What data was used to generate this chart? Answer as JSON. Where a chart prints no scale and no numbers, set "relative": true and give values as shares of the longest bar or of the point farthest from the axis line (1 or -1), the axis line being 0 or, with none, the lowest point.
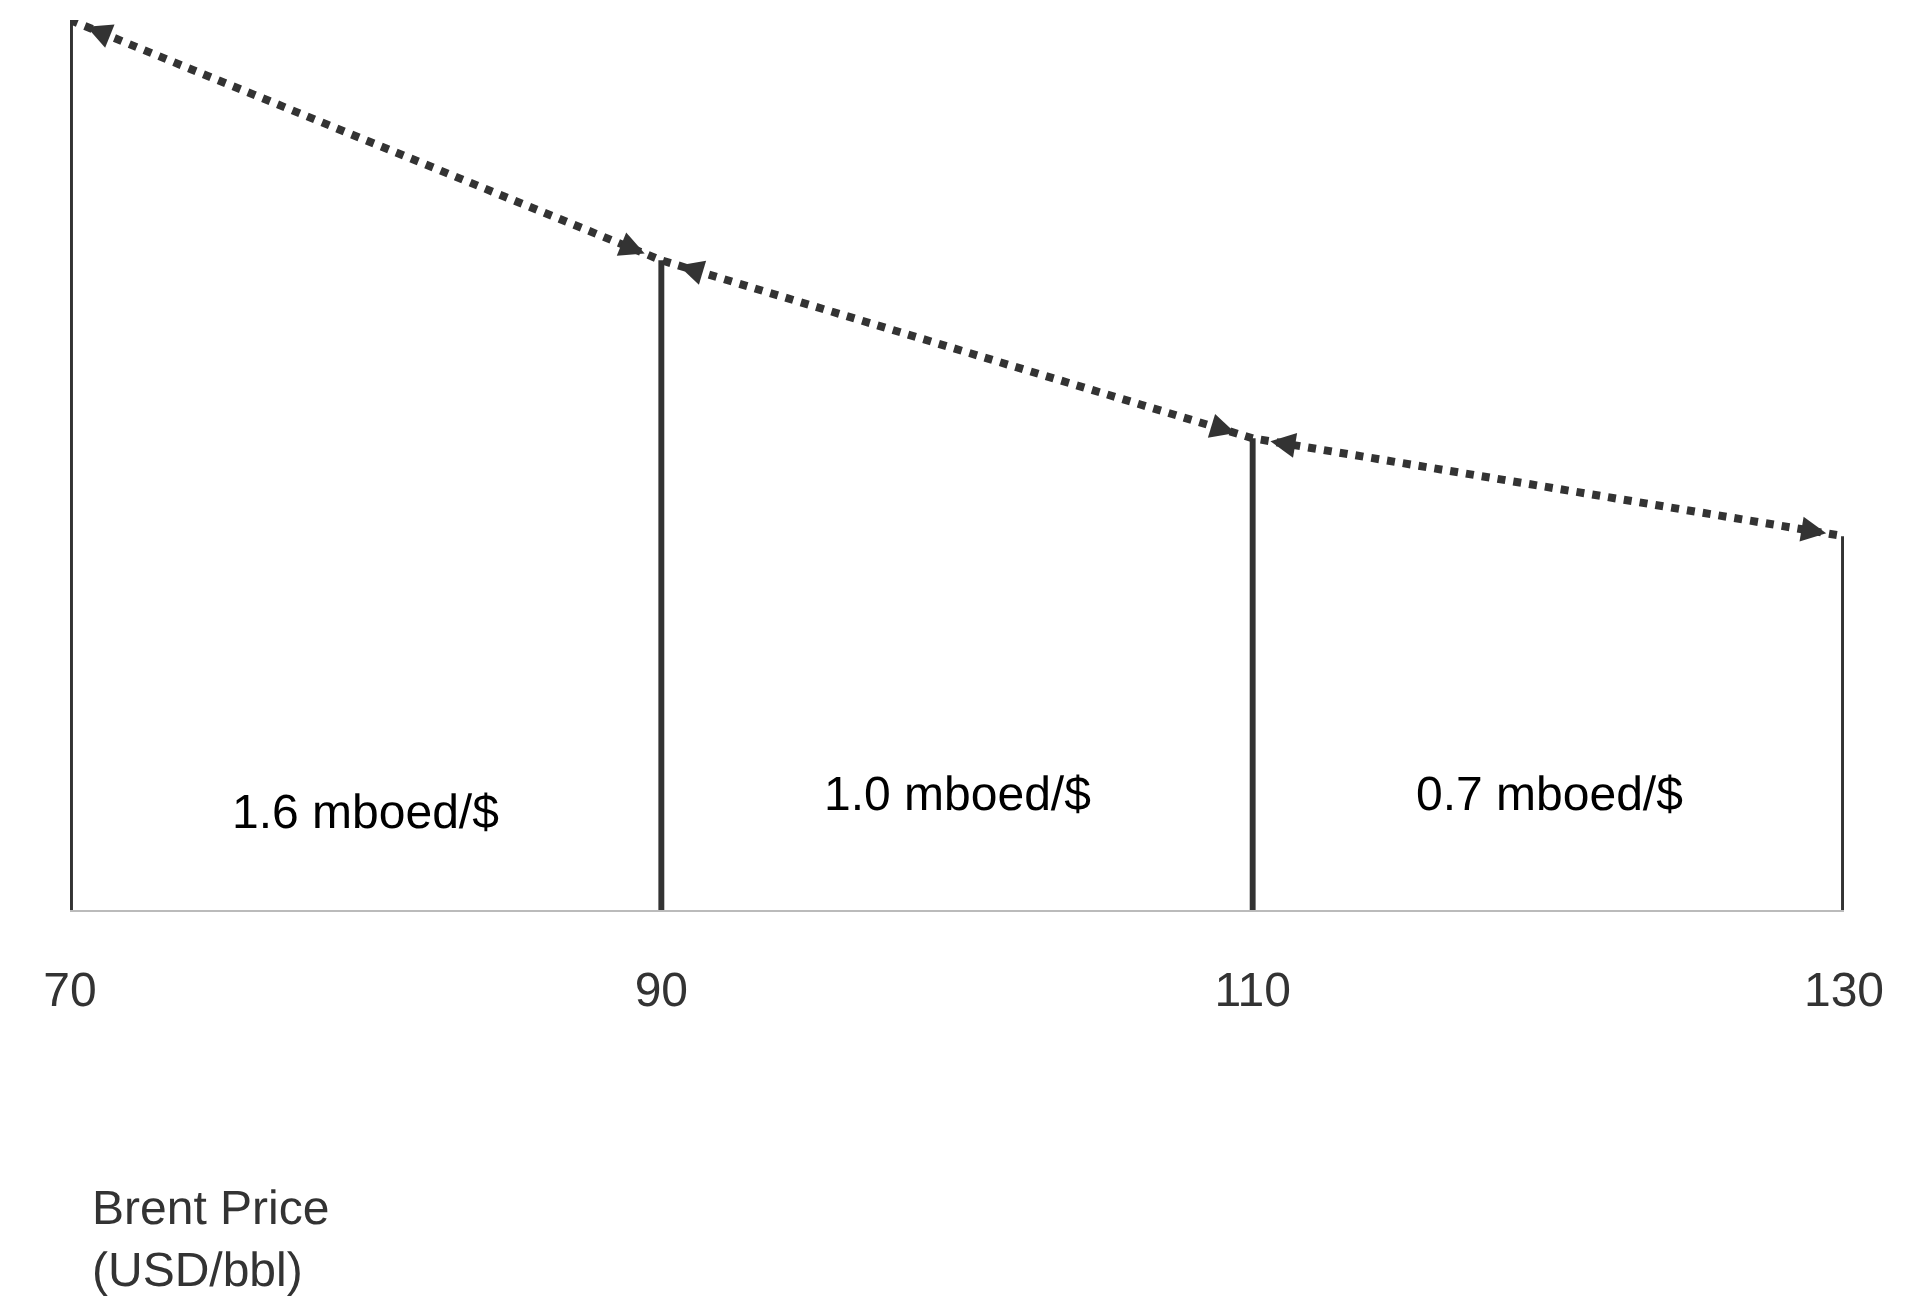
{
  "chart_data": {
    "type": "bar",
    "relative": true,
    "x": [
      70,
      90,
      110,
      130
    ],
    "xlim": [
      70,
      130
    ],
    "xticks": [
      70,
      90,
      110,
      130
    ],
    "xlabel": "Brent Price\n(USD/bbl)",
    "series": [
      {
        "color": "#333333",
        "values": [
          1,
          0.73,
          0.53,
          0.42
        ]
      },
      {
        "type": "line",
        "color": "#333333",
        "line_style": "dotted",
        "marker": "none",
        "values": [
          1,
          0.73,
          0.53,
          0.42
        ]
      }
    ],
    "annotations": [
      "1.6 mboed/$",
      "1.0 mboed/$",
      "0.7 mboed/$"
    ],
    "grid": false
  }
}
